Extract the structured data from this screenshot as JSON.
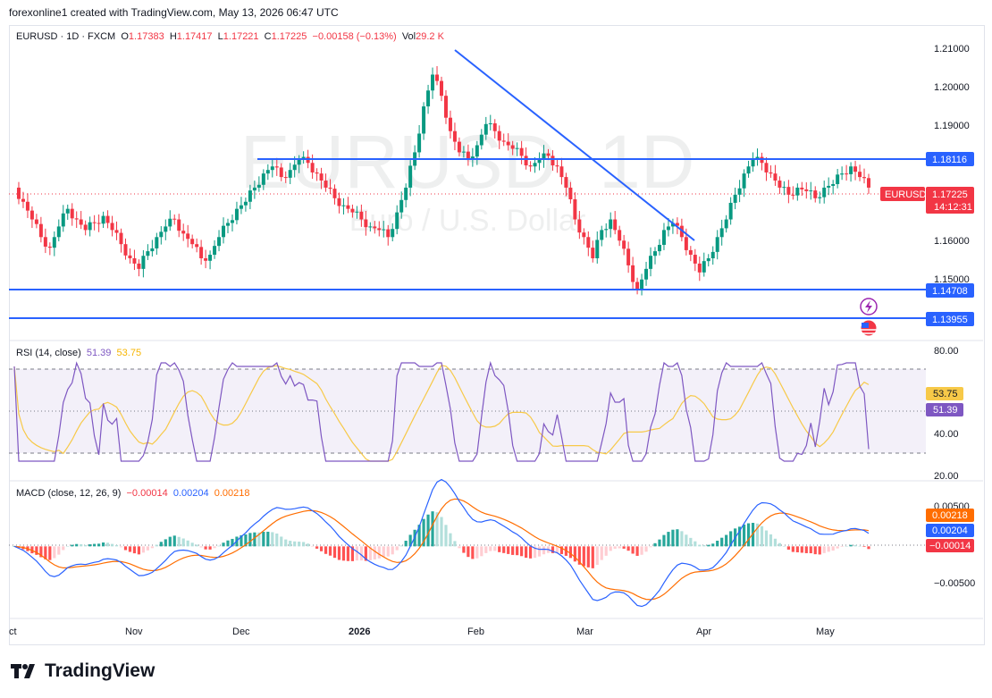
{
  "header": {
    "credit": "forexonline1 created with TradingView.com, May 13, 2026 06:47 UTC"
  },
  "symbol_info": {
    "symbol": "EURUSD · 1D · FXCM",
    "open_label": "O",
    "open": "1.17383",
    "high_label": "H",
    "high": "1.17417",
    "low_label": "L",
    "low": "1.17221",
    "close_label": "C",
    "close": "1.17225",
    "change": "−0.00158 (−0.13%)",
    "vol_label": "Vol",
    "vol": "29.2 K"
  },
  "watermark": {
    "big": "EURUSD, 1D",
    "small": "Euro / U.S. Dollar"
  },
  "price_axis": [
    "1.21000",
    "1.20000",
    "1.19000",
    "1.16000",
    "1.15000"
  ],
  "price_tags": {
    "symbol": "EURUSD",
    "last": "1.17225",
    "countdown": "14:12:31",
    "levels": [
      "1.18116",
      "1.14708",
      "1.13955"
    ]
  },
  "rsi": {
    "label": "RSI (14, close)",
    "rsi_value": "51.39",
    "ma_value": "53.75",
    "axis": [
      "80.00",
      "40.00",
      "20.00"
    ]
  },
  "macd": {
    "label": "MACD (close, 12, 26, 9)",
    "hist": "−0.00014",
    "macd": "0.00204",
    "signal": "0.00218",
    "axis": [
      "0.00500",
      "−0.00500"
    ]
  },
  "time_axis": [
    "ct",
    "Nov",
    "Dec",
    "2026",
    "Feb",
    "Mar",
    "Apr",
    "May"
  ],
  "brand": {
    "name": "TradingView"
  },
  "colors": {
    "up": "#089981",
    "down": "#f23645",
    "line": "#2962ff",
    "rsi": "#7e57c2",
    "rsi_ma": "#f7c948",
    "signal": "#ff6d00"
  },
  "chart_data": {
    "type": "candlestick",
    "ylim": [
      1.131,
      1.215
    ],
    "trendline": [
      [
        1.209
      ],
      [
        1.16
      ]
    ],
    "horizontal_levels": [
      1.18116,
      1.14708,
      1.13955
    ],
    "close_path": [
      1.172,
      1.168,
      1.163,
      1.158,
      1.155,
      1.161,
      1.166,
      1.163,
      1.16,
      1.162,
      1.164,
      1.16,
      1.156,
      1.152,
      1.149,
      1.154,
      1.158,
      1.161,
      1.163,
      1.159,
      1.156,
      1.152,
      1.153,
      1.158,
      1.162,
      1.166,
      1.168,
      1.172,
      1.176,
      1.178,
      1.175,
      1.177,
      1.18,
      1.179,
      1.176,
      1.172,
      1.169,
      1.167,
      1.165,
      1.163,
      1.161,
      1.16,
      1.158,
      1.165,
      1.172,
      1.182,
      1.195,
      1.204,
      1.198,
      1.188,
      1.182,
      1.18,
      1.184,
      1.19,
      1.188,
      1.185,
      1.183,
      1.181,
      1.178,
      1.18,
      1.181,
      1.178,
      1.172,
      1.163,
      1.158,
      1.152,
      1.16,
      1.163,
      1.157,
      1.15,
      1.143,
      1.149,
      1.154,
      1.16,
      1.162,
      1.158,
      1.153,
      1.148,
      1.152,
      1.158,
      1.163,
      1.17,
      1.176,
      1.18,
      1.179,
      1.176,
      1.172,
      1.17,
      1.172,
      1.171,
      1.169,
      1.172,
      1.173,
      1.176,
      1.178,
      1.175,
      1.172
    ],
    "rsi_ylim": [
      15,
      85
    ],
    "rsi_levels": [
      70,
      50,
      30
    ],
    "macd_ylim": [
      -0.0085,
      0.0065
    ]
  }
}
